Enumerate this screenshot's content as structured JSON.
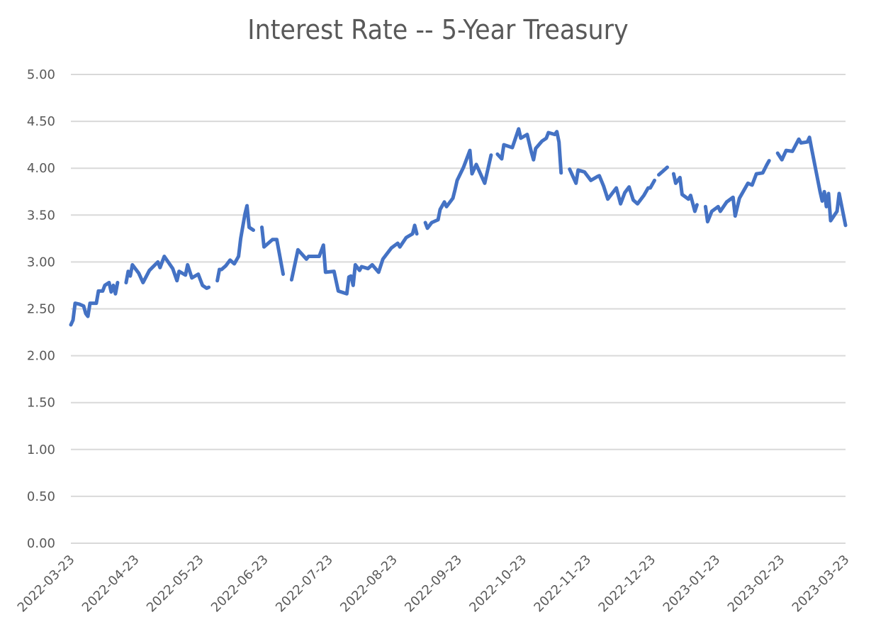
{
  "chart": {
    "title": "Interest Rate -- 5-Year Treasury",
    "line_color": "#4472C4",
    "grid_color": "#D9D9D9",
    "text_color": "#595959"
  },
  "chart_data": {
    "type": "line",
    "title": "Interest Rate -- 5-Year Treasury",
    "xlabel": "",
    "ylabel": "",
    "ylim": [
      0,
      5
    ],
    "y_ticks": [
      "0.00",
      "0.50",
      "1.00",
      "1.50",
      "2.00",
      "2.50",
      "3.00",
      "3.50",
      "4.00",
      "4.50",
      "5.00"
    ],
    "x_ticks": [
      "2022-03-23",
      "2022-04-23",
      "2022-05-23",
      "2022-06-23",
      "2022-07-23",
      "2022-08-23",
      "2022-09-23",
      "2022-10-23",
      "2022-11-23",
      "2022-12-23",
      "2023-01-23",
      "2023-02-23",
      "2023-03-23"
    ],
    "x_range": [
      "2022-03-23",
      "2023-03-23"
    ],
    "grid": true,
    "legend": "none",
    "series": [
      {
        "name": "5-Year Treasury",
        "note": "segments separated by gaps (missing dates); points are [day offset from 2022-03-23, rate %]",
        "segments": [
          [
            [
              0,
              2.33
            ],
            [
              1,
              2.38
            ],
            [
              2,
              2.56
            ],
            [
              4,
              2.55
            ],
            [
              6,
              2.53
            ],
            [
              7,
              2.45
            ],
            [
              8,
              2.42
            ],
            [
              9,
              2.56
            ],
            [
              12,
              2.56
            ],
            [
              13,
              2.69
            ],
            [
              15,
              2.69
            ],
            [
              16,
              2.75
            ],
            [
              18,
              2.78
            ],
            [
              19,
              2.68
            ],
            [
              20,
              2.75
            ],
            [
              21,
              2.66
            ],
            [
              22,
              2.78
            ]
          ],
          [
            [
              26,
              2.78
            ],
            [
              27,
              2.9
            ],
            [
              28,
              2.85
            ],
            [
              29,
              2.97
            ],
            [
              32,
              2.88
            ],
            [
              34,
              2.78
            ],
            [
              37,
              2.91
            ],
            [
              41,
              3.0
            ],
            [
              42,
              2.94
            ],
            [
              44,
              3.06
            ],
            [
              48,
              2.93
            ],
            [
              50,
              2.8
            ],
            [
              51,
              2.9
            ],
            [
              54,
              2.86
            ],
            [
              55,
              2.97
            ],
            [
              57,
              2.83
            ],
            [
              60,
              2.87
            ],
            [
              62,
              2.75
            ],
            [
              64,
              2.72
            ],
            [
              65,
              2.73
            ]
          ],
          [
            [
              69,
              2.8
            ],
            [
              70,
              2.92
            ],
            [
              71,
              2.92
            ],
            [
              73,
              2.96
            ],
            [
              75,
              3.02
            ],
            [
              77,
              2.98
            ],
            [
              79,
              3.06
            ],
            [
              80,
              3.25
            ],
            [
              82,
              3.51
            ],
            [
              83,
              3.6
            ],
            [
              84,
              3.37
            ],
            [
              86,
              3.34
            ]
          ],
          [
            [
              90,
              3.37
            ],
            [
              91,
              3.16
            ],
            [
              95,
              3.24
            ],
            [
              97,
              3.24
            ],
            [
              100,
              2.87
            ]
          ],
          [
            [
              104,
              2.81
            ],
            [
              107,
              3.13
            ],
            [
              111,
              3.03
            ],
            [
              112,
              3.06
            ],
            [
              117,
              3.06
            ],
            [
              119,
              3.18
            ],
            [
              120,
              2.89
            ],
            [
              124,
              2.9
            ],
            [
              126,
              2.69
            ],
            [
              130,
              2.66
            ],
            [
              131,
              2.84
            ],
            [
              132,
              2.85
            ],
            [
              133,
              2.75
            ],
            [
              134,
              2.97
            ],
            [
              136,
              2.91
            ],
            [
              137,
              2.95
            ],
            [
              140,
              2.93
            ],
            [
              142,
              2.97
            ],
            [
              145,
              2.89
            ],
            [
              147,
              3.03
            ],
            [
              149,
              3.09
            ],
            [
              151,
              3.15
            ],
            [
              154,
              3.2
            ],
            [
              155,
              3.16
            ],
            [
              158,
              3.26
            ],
            [
              161,
              3.3
            ],
            [
              162,
              3.39
            ],
            [
              163,
              3.3
            ]
          ],
          [
            [
              167,
              3.42
            ],
            [
              168,
              3.36
            ],
            [
              170,
              3.42
            ],
            [
              173,
              3.45
            ],
            [
              174,
              3.56
            ],
            [
              176,
              3.64
            ],
            [
              177,
              3.59
            ],
            [
              180,
              3.68
            ],
            [
              181,
              3.77
            ],
            [
              182,
              3.87
            ],
            [
              185,
              4.01
            ],
            [
              188,
              4.19
            ],
            [
              189,
              3.94
            ],
            [
              191,
              4.04
            ],
            [
              195,
              3.84
            ],
            [
              198,
              4.14
            ]
          ],
          [
            [
              201,
              4.15
            ],
            [
              203,
              4.1
            ],
            [
              204,
              4.25
            ],
            [
              208,
              4.22
            ],
            [
              211,
              4.42
            ],
            [
              212,
              4.32
            ],
            [
              215,
              4.36
            ],
            [
              217,
              4.17
            ],
            [
              218,
              4.09
            ],
            [
              219,
              4.21
            ],
            [
              222,
              4.29
            ],
            [
              224,
              4.32
            ],
            [
              225,
              4.38
            ],
            [
              228,
              4.36
            ],
            [
              229,
              4.39
            ],
            [
              230,
              4.28
            ],
            [
              231,
              3.95
            ]
          ],
          [
            [
              235,
              3.99
            ],
            [
              238,
              3.84
            ],
            [
              239,
              3.98
            ],
            [
              242,
              3.96
            ],
            [
              245,
              3.87
            ],
            [
              248,
              3.91
            ],
            [
              249,
              3.92
            ],
            [
              251,
              3.81
            ],
            [
              253,
              3.67
            ],
            [
              255,
              3.73
            ],
            [
              257,
              3.79
            ],
            [
              259,
              3.62
            ],
            [
              261,
              3.74
            ],
            [
              263,
              3.8
            ],
            [
              265,
              3.66
            ],
            [
              267,
              3.62
            ],
            [
              270,
              3.71
            ],
            [
              272,
              3.79
            ],
            [
              273,
              3.79
            ],
            [
              275,
              3.87
            ]
          ],
          [
            [
              277,
              3.93
            ],
            [
              279,
              3.97
            ],
            [
              281,
              4.01
            ]
          ],
          [
            [
              284,
              3.94
            ],
            [
              285,
              3.84
            ],
            [
              287,
              3.9
            ],
            [
              288,
              3.72
            ],
            [
              291,
              3.67
            ],
            [
              292,
              3.71
            ],
            [
              294,
              3.54
            ],
            [
              295,
              3.61
            ]
          ],
          [
            [
              299,
              3.59
            ],
            [
              300,
              3.43
            ],
            [
              302,
              3.54
            ],
            [
              305,
              3.59
            ],
            [
              306,
              3.54
            ],
            [
              309,
              3.64
            ],
            [
              312,
              3.69
            ],
            [
              313,
              3.49
            ],
            [
              315,
              3.68
            ],
            [
              319,
              3.84
            ],
            [
              321,
              3.82
            ],
            [
              323,
              3.94
            ],
            [
              326,
              3.95
            ],
            [
              328,
              4.04
            ],
            [
              329,
              4.08
            ]
          ],
          [
            [
              333,
              4.16
            ],
            [
              335,
              4.09
            ],
            [
              337,
              4.19
            ],
            [
              340,
              4.18
            ],
            [
              343,
              4.31
            ],
            [
              344,
              4.27
            ],
            [
              347,
              4.28
            ],
            [
              348,
              4.33
            ],
            [
              349,
              4.21
            ],
            [
              351,
              3.98
            ],
            [
              353,
              3.75
            ],
            [
              354,
              3.65
            ],
            [
              355,
              3.75
            ],
            [
              356,
              3.59
            ],
            [
              357,
              3.73
            ],
            [
              358,
              3.44
            ],
            [
              361,
              3.54
            ],
            [
              362,
              3.73
            ],
            [
              365,
              3.39
            ]
          ]
        ]
      }
    ]
  }
}
